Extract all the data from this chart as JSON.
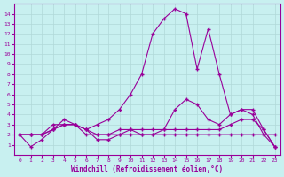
{
  "x": [
    0,
    1,
    2,
    3,
    4,
    5,
    6,
    7,
    8,
    9,
    10,
    11,
    12,
    13,
    14,
    15,
    16,
    17,
    18,
    19,
    20,
    21,
    22,
    23
  ],
  "line1": [
    2,
    2,
    2,
    3,
    3,
    3,
    2,
    2,
    2,
    2,
    2,
    2,
    2,
    2,
    2,
    2,
    2,
    2,
    2,
    2,
    2,
    2,
    2,
    2
  ],
  "line2": [
    2,
    0.8,
    1.5,
    2.5,
    3,
    3,
    2.5,
    1.5,
    1.5,
    2,
    2.5,
    2,
    2,
    2.5,
    4.5,
    5.5,
    5,
    3.5,
    3,
    4,
    4.5,
    4,
    2,
    0.8
  ],
  "line3": [
    2,
    2,
    2,
    2.5,
    3.5,
    3,
    2.5,
    3,
    3.5,
    4.5,
    6,
    8,
    12,
    13.5,
    14.5,
    14,
    8.5,
    12.5,
    8,
    4,
    4.5,
    4.5,
    2.5,
    0.8
  ],
  "line4": [
    2,
    2,
    2,
    2.5,
    3,
    3,
    2.5,
    2,
    2,
    2.5,
    2.5,
    2.5,
    2.5,
    2.5,
    2.5,
    2.5,
    2.5,
    2.5,
    2.5,
    3,
    3.5,
    3.5,
    2.5,
    0.8
  ],
  "bg_color": "#c8f0f0",
  "grid_color": "#b0d8d8",
  "line_color": "#990099",
  "xlabel": "Windchill (Refroidissement éolien,°C)",
  "ylabel": "",
  "xlim": [
    -0.5,
    23.5
  ],
  "ylim": [
    0,
    15
  ],
  "yticks": [
    1,
    2,
    3,
    4,
    5,
    6,
    7,
    8,
    9,
    10,
    11,
    12,
    13,
    14
  ],
  "xticks": [
    0,
    1,
    2,
    3,
    4,
    5,
    6,
    7,
    8,
    9,
    10,
    11,
    12,
    13,
    14,
    15,
    16,
    17,
    18,
    19,
    20,
    21,
    22,
    23
  ]
}
